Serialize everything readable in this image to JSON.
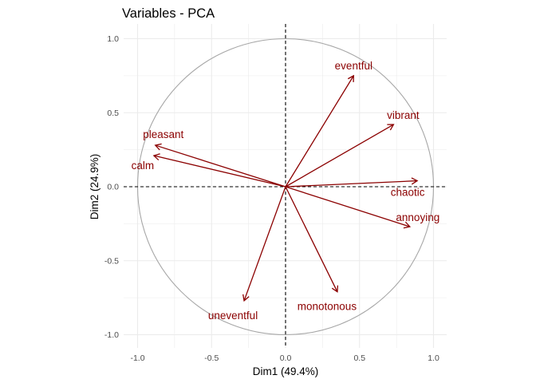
{
  "chart_data": {
    "type": "scatter",
    "title": "Variables - PCA",
    "xlabel": "Dim1 (49.4%)",
    "ylabel": "Dim2 (24.9%)",
    "xlim": [
      -1.0,
      1.0
    ],
    "ylim": [
      -1.0,
      1.0
    ],
    "x_ticks": [
      -1.0,
      -0.5,
      0.0,
      0.5,
      1.0
    ],
    "y_ticks": [
      -1.0,
      -0.5,
      0.0,
      0.5,
      1.0
    ],
    "x_tick_labels": [
      "-1.0",
      "-0.5",
      "0.0",
      "0.5",
      "1.0"
    ],
    "y_tick_labels": [
      "-1.0",
      "-0.5",
      "0.0",
      "0.5",
      "1.0"
    ],
    "grid": true,
    "correlation_circle": true,
    "arrow_color": "#8B0000",
    "circle_color": "#a6a6a6",
    "grid_color": "#ebebeb",
    "variables": [
      {
        "name": "eventful",
        "x": 0.46,
        "y": 0.75
      },
      {
        "name": "vibrant",
        "x": 0.73,
        "y": 0.42
      },
      {
        "name": "pleasant",
        "x": -0.88,
        "y": 0.28
      },
      {
        "name": "calm",
        "x": -0.89,
        "y": 0.21
      },
      {
        "name": "chaotic",
        "x": 0.89,
        "y": 0.04
      },
      {
        "name": "annoying",
        "x": 0.84,
        "y": -0.27
      },
      {
        "name": "monotonous",
        "x": 0.35,
        "y": -0.71
      },
      {
        "name": "uneventful",
        "x": -0.28,
        "y": -0.77
      }
    ]
  }
}
